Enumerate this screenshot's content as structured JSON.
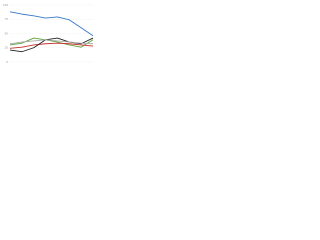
{
  "chart_data": {
    "type": "line",
    "categories": [
      null,
      null,
      null,
      null,
      null,
      null,
      null,
      null
    ],
    "ylim": [
      0,
      100
    ],
    "yticks": [
      0,
      25,
      50,
      75,
      100
    ],
    "grid": true,
    "series": [
      {
        "color": "#3a78c9",
        "values": [
          88,
          84,
          81,
          77,
          79,
          74,
          60,
          46
        ]
      },
      {
        "color": "#5aa53a",
        "values": [
          30,
          33,
          42,
          39,
          35,
          30,
          26,
          39
        ]
      },
      {
        "color": "#c9302c",
        "values": [
          24,
          26,
          30,
          32,
          33,
          32,
          30,
          28
        ]
      },
      {
        "color": "#222222",
        "values": [
          21,
          18,
          25,
          39,
          42,
          35,
          32,
          42
        ]
      },
      {
        "color": "#aaaaaa",
        "values": [
          32,
          35,
          37,
          39,
          37,
          35,
          33,
          32
        ]
      }
    ]
  }
}
